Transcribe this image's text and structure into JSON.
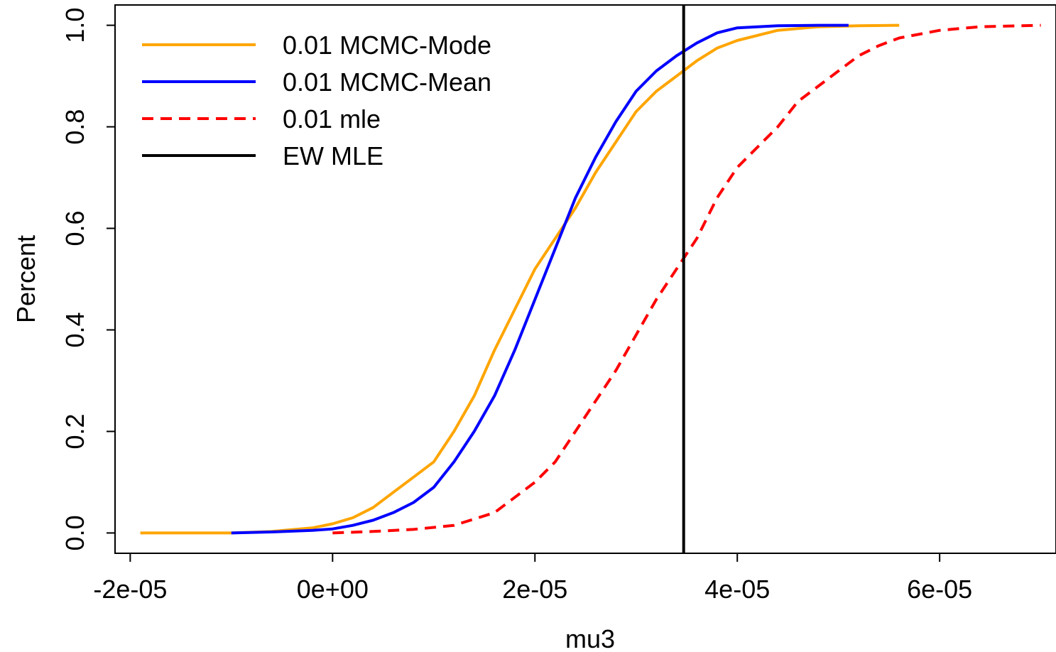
{
  "chart_data": {
    "type": "line",
    "title": "",
    "xlabel": "mu3",
    "ylabel": "Percent",
    "xlim": [
      -2.15e-05,
      7.15e-05
    ],
    "ylim": [
      -0.04,
      1.04
    ],
    "xticks": [
      -2e-05,
      0,
      2e-05,
      4e-05,
      6e-05
    ],
    "xtick_labels": [
      "-2e-05",
      "0e+00",
      "2e-05",
      "4e-05",
      "6e-05"
    ],
    "yticks": [
      0,
      0.2,
      0.4,
      0.6,
      0.8,
      1.0
    ],
    "ytick_labels": [
      "0.0",
      "0.2",
      "0.4",
      "0.6",
      "0.8",
      "1.0"
    ],
    "grid": false,
    "legend_position": "top-left",
    "series": [
      {
        "name": "0.01 MCMC-Mode",
        "color": "#FFA500",
        "style": "solid",
        "x": [
          -1.9e-05,
          -1e-05,
          -6e-06,
          -2e-06,
          0.0,
          2e-06,
          4e-06,
          6e-06,
          8e-06,
          1e-05,
          1.2e-05,
          1.4e-05,
          1.6e-05,
          1.8e-05,
          2e-05,
          2.2e-05,
          2.4e-05,
          2.6e-05,
          2.8e-05,
          3e-05,
          3.2e-05,
          3.4e-05,
          3.6e-05,
          3.8e-05,
          4e-05,
          4.4e-05,
          4.8e-05,
          5.2e-05,
          5.6e-05
        ],
        "y": [
          0.0,
          0.0,
          0.003,
          0.01,
          0.018,
          0.03,
          0.05,
          0.08,
          0.11,
          0.14,
          0.2,
          0.27,
          0.36,
          0.44,
          0.52,
          0.58,
          0.64,
          0.71,
          0.77,
          0.83,
          0.87,
          0.9,
          0.93,
          0.955,
          0.97,
          0.99,
          0.997,
          0.999,
          1.0
        ]
      },
      {
        "name": "0.01 MCMC-Mean",
        "color": "#0000FF",
        "style": "solid",
        "x": [
          -1e-05,
          -6e-06,
          -2e-06,
          0.0,
          2e-06,
          4e-06,
          6e-06,
          8e-06,
          1e-05,
          1.2e-05,
          1.4e-05,
          1.6e-05,
          1.8e-05,
          2e-05,
          2.2e-05,
          2.4e-05,
          2.6e-05,
          2.8e-05,
          3e-05,
          3.2e-05,
          3.4e-05,
          3.6e-05,
          3.8e-05,
          4e-05,
          4.4e-05,
          4.8e-05,
          5.1e-05
        ],
        "y": [
          0.0,
          0.002,
          0.005,
          0.008,
          0.015,
          0.025,
          0.04,
          0.06,
          0.09,
          0.14,
          0.2,
          0.27,
          0.36,
          0.46,
          0.56,
          0.66,
          0.74,
          0.81,
          0.87,
          0.91,
          0.94,
          0.965,
          0.985,
          0.995,
          0.999,
          1.0,
          1.0
        ]
      },
      {
        "name": "0.01 mle",
        "color": "#FF0000",
        "style": "dashed",
        "x": [
          0.0,
          4e-06,
          8e-06,
          1.2e-05,
          1.6e-05,
          2e-05,
          2.2e-05,
          2.4e-05,
          2.6e-05,
          2.8e-05,
          3e-05,
          3.2e-05,
          3.4e-05,
          3.6e-05,
          3.8e-05,
          4e-05,
          4.2e-05,
          4.4e-05,
          4.6e-05,
          4.8e-05,
          5e-05,
          5.2e-05,
          5.4e-05,
          5.6e-05,
          6e-05,
          6.4e-05,
          7e-05
        ],
        "y": [
          0.0,
          0.003,
          0.007,
          0.015,
          0.04,
          0.1,
          0.14,
          0.2,
          0.26,
          0.32,
          0.39,
          0.46,
          0.52,
          0.58,
          0.66,
          0.72,
          0.76,
          0.8,
          0.85,
          0.88,
          0.91,
          0.94,
          0.96,
          0.975,
          0.99,
          0.997,
          1.0
        ]
      }
    ],
    "reference_lines": [
      {
        "name": "EW MLE",
        "orientation": "vertical",
        "x": 3.47e-05,
        "color": "#000000",
        "style": "solid"
      }
    ]
  }
}
